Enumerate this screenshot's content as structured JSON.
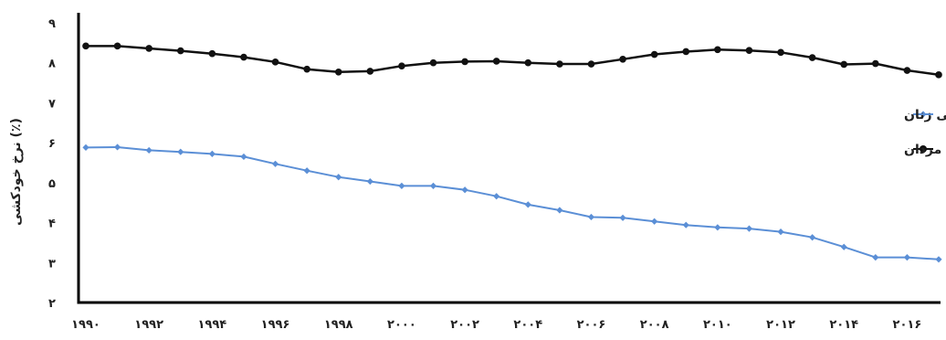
{
  "chart_data": {
    "type": "line",
    "title": "",
    "ylabel": "نرخ خودکشی (٪)",
    "xlabel": "",
    "x": [
      1990,
      1991,
      1992,
      1993,
      1994,
      1995,
      1996,
      1997,
      1998,
      1999,
      2000,
      2001,
      2002,
      2003,
      2004,
      2005,
      2006,
      2007,
      2008,
      2009,
      2010,
      2011,
      2012,
      2013,
      2014,
      2015,
      2016,
      2017
    ],
    "xticks": [
      1990,
      1992,
      1994,
      1996,
      1998,
      2000,
      2002,
      2004,
      2006,
      2008,
      2010,
      2012,
      2014,
      2016
    ],
    "xtick_labels": [
      "۱۹۹۰",
      "۱۹۹۲",
      "۱۹۹۴",
      "۱۹۹۶",
      "۱۹۹۸",
      "۲۰۰۰",
      "۲۰۰۲",
      "۲۰۰۴",
      "۲۰۰۶",
      "۲۰۰۸",
      "۲۰۱۰",
      "۲۰۱۲",
      "۲۰۱۴",
      "۲۰۱۶"
    ],
    "yticks": [
      2,
      3,
      4,
      5,
      6,
      7,
      8,
      9
    ],
    "ytick_labels": [
      "۲",
      "۳",
      "۴",
      "۵",
      "۶",
      "۷",
      "۸",
      "۹"
    ],
    "xlim": [
      1990,
      2017
    ],
    "ylim": [
      2,
      9
    ],
    "grid": false,
    "legend": {
      "position": "right"
    },
    "series": [
      {
        "name": "نرخ خودکشی زنان",
        "color": "#5b8fd6",
        "marker": "diamond",
        "values": [
          5.88,
          5.89,
          5.81,
          5.77,
          5.72,
          5.65,
          5.47,
          5.3,
          5.14,
          5.03,
          4.92,
          4.92,
          4.82,
          4.66,
          4.45,
          4.31,
          4.14,
          4.12,
          4.03,
          3.94,
          3.88,
          3.85,
          3.77,
          3.63,
          3.39,
          3.13,
          3.13,
          3.08
        ]
      },
      {
        "name": "نرخ خودکشی مردان",
        "color": "#111111",
        "marker": "circle",
        "values": [
          8.42,
          8.42,
          8.36,
          8.3,
          8.23,
          8.14,
          8.02,
          7.84,
          7.77,
          7.79,
          7.92,
          8.0,
          8.03,
          8.04,
          8.0,
          7.97,
          7.97,
          8.09,
          8.21,
          8.28,
          8.33,
          8.31,
          8.26,
          8.13,
          7.96,
          7.98,
          7.81,
          7.7
        ]
      }
    ]
  }
}
